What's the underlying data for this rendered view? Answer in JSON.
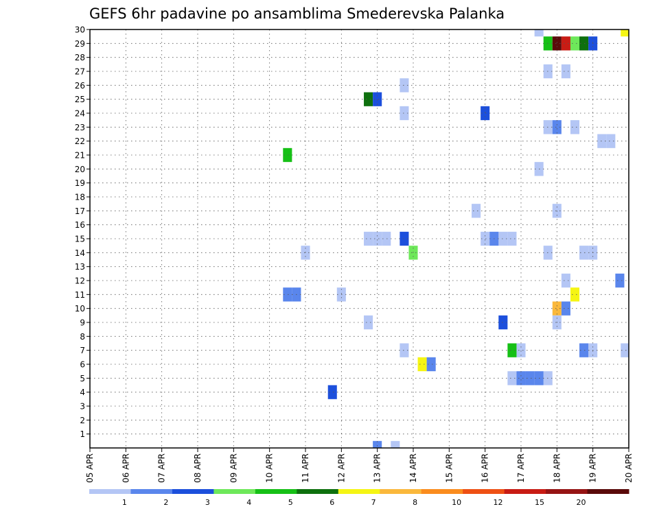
{
  "chart_data": {
    "type": "heatmap",
    "title": "GEFS 6hr padavine po ansamblima Smederevska Palanka",
    "xlabel": "",
    "ylabel": "",
    "x_tick_labels": [
      "05 APR",
      "06 APR",
      "07 APR",
      "08 APR",
      "09 APR",
      "10 APR",
      "11 APR",
      "12 APR",
      "13 APR",
      "14 APR",
      "15 APR",
      "16 APR",
      "17 APR",
      "18 APR",
      "19 APR",
      "20 APR"
    ],
    "x_range_days": [
      0,
      15
    ],
    "y_range": [
      0,
      30
    ],
    "y_tick_labels": [
      "1",
      "2",
      "3",
      "4",
      "5",
      "6",
      "7",
      "8",
      "9",
      "10",
      "11",
      "12",
      "13",
      "14",
      "15",
      "16",
      "17",
      "18",
      "19",
      "20",
      "21",
      "22",
      "23",
      "24",
      "25",
      "26",
      "27",
      "28",
      "29",
      "30"
    ],
    "grid": true,
    "legend": {
      "placement": "bottom",
      "colors": [
        "#b4c6f5",
        "#5a86ec",
        "#1c4fdc",
        "#6ee85a",
        "#16c016",
        "#0e700e",
        "#f5f514",
        "#fab83c",
        "#fa8c1e",
        "#ee5014",
        "#c81c14",
        "#961414",
        "#5a0a0a"
      ],
      "labels": [
        "1",
        "2",
        "3",
        "4",
        "5",
        "6",
        "7",
        "8",
        "10",
        "12",
        "15",
        "20"
      ]
    },
    "cells": [
      {
        "member": 30,
        "days": [
          12.5
        ],
        "color": "#b4c6f5"
      },
      {
        "member": 30,
        "days": [
          14.9
        ],
        "color": "#f5f514"
      },
      {
        "member": 29,
        "days": [
          12.75
        ],
        "color": "#16c016"
      },
      {
        "member": 29,
        "days": [
          13.0
        ],
        "color": "#5a0a0a"
      },
      {
        "member": 29,
        "days": [
          13.25
        ],
        "color": "#c81c14"
      },
      {
        "member": 29,
        "days": [
          13.5
        ],
        "color": "#6ee85a"
      },
      {
        "member": 29,
        "days": [
          13.75
        ],
        "color": "#0e700e"
      },
      {
        "member": 29,
        "days": [
          14.0
        ],
        "color": "#1c4fdc"
      },
      {
        "member": 27,
        "days": [
          12.75,
          13.25
        ],
        "color": "#b4c6f5"
      },
      {
        "member": 26,
        "days": [
          8.75
        ],
        "color": "#b4c6f5"
      },
      {
        "member": 25,
        "days": [
          7.75
        ],
        "color": "#0e700e"
      },
      {
        "member": 25,
        "days": [
          8.0
        ],
        "color": "#1c4fdc"
      },
      {
        "member": 24,
        "days": [
          8.75
        ],
        "color": "#b4c6f5"
      },
      {
        "member": 24,
        "days": [
          11.0
        ],
        "color": "#1c4fdc"
      },
      {
        "member": 23,
        "days": [
          12.75,
          13.5
        ],
        "color": "#b4c6f5"
      },
      {
        "member": 23,
        "days": [
          13.0
        ],
        "color": "#5a86ec"
      },
      {
        "member": 22,
        "days": [
          14.25,
          14.5
        ],
        "color": "#b4c6f5"
      },
      {
        "member": 21,
        "days": [
          5.5
        ],
        "color": "#16c016"
      },
      {
        "member": 20,
        "days": [
          12.5
        ],
        "color": "#b4c6f5"
      },
      {
        "member": 17,
        "days": [
          10.75,
          13.0
        ],
        "color": "#b4c6f5"
      },
      {
        "member": 15,
        "days": [
          7.75,
          8.0,
          8.25,
          11.0,
          11.5,
          11.75
        ],
        "color": "#b4c6f5"
      },
      {
        "member": 15,
        "days": [
          8.75
        ],
        "color": "#1c4fdc"
      },
      {
        "member": 15,
        "days": [
          11.25
        ],
        "color": "#5a86ec"
      },
      {
        "member": 14,
        "days": [
          6.0,
          12.75,
          13.75,
          14.0
        ],
        "color": "#b4c6f5"
      },
      {
        "member": 14,
        "days": [
          9.0
        ],
        "color": "#6ee85a"
      },
      {
        "member": 12,
        "days": [
          14.75
        ],
        "color": "#5a86ec"
      },
      {
        "member": 12,
        "days": [
          13.25
        ],
        "color": "#b4c6f5"
      },
      {
        "member": 11,
        "days": [
          5.5,
          5.75
        ],
        "color": "#5a86ec"
      },
      {
        "member": 11,
        "days": [
          7.0
        ],
        "color": "#b4c6f5"
      },
      {
        "member": 11,
        "days": [
          13.5
        ],
        "color": "#f5f514"
      },
      {
        "member": 10,
        "days": [
          13.0
        ],
        "color": "#fab83c"
      },
      {
        "member": 10,
        "days": [
          13.25
        ],
        "color": "#5a86ec"
      },
      {
        "member": 9,
        "days": [
          7.75,
          13.0
        ],
        "color": "#b4c6f5"
      },
      {
        "member": 9,
        "days": [
          11.5
        ],
        "color": "#1c4fdc"
      },
      {
        "member": 7,
        "days": [
          8.75,
          12.0,
          14.0,
          14.9
        ],
        "color": "#b4c6f5"
      },
      {
        "member": 7,
        "days": [
          11.75
        ],
        "color": "#16c016"
      },
      {
        "member": 7,
        "days": [
          13.75
        ],
        "color": "#5a86ec"
      },
      {
        "member": 6,
        "days": [
          9.25
        ],
        "color": "#f5f514"
      },
      {
        "member": 6,
        "days": [
          9.5
        ],
        "color": "#5a86ec"
      },
      {
        "member": 5,
        "days": [
          11.75,
          12.75
        ],
        "color": "#b4c6f5"
      },
      {
        "member": 5,
        "days": [
          12.0,
          12.25,
          12.5
        ],
        "color": "#5a86ec"
      },
      {
        "member": 4,
        "days": [
          6.75
        ],
        "color": "#1c4fdc"
      },
      {
        "member": 0,
        "days": [
          8.0
        ],
        "color": "#5a86ec"
      },
      {
        "member": 0,
        "days": [
          8.5
        ],
        "color": "#b4c6f5"
      }
    ]
  }
}
